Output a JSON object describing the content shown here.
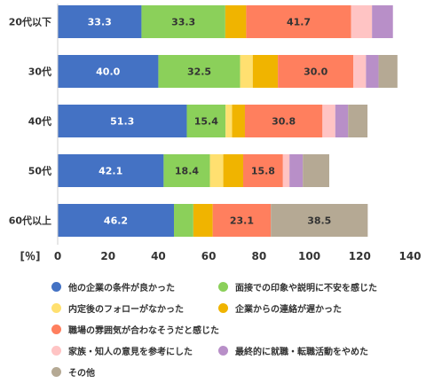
{
  "chart_data": {
    "type": "bar",
    "orientation": "horizontal",
    "stacked": true,
    "categories": [
      "20代以下",
      "30代",
      "40代",
      "50代",
      "60代以上"
    ],
    "series": [
      {
        "name": "他の企業の条件が良かった",
        "color": "#4472C4",
        "values": [
          33.3,
          40.0,
          51.3,
          42.1,
          46.2
        ],
        "labels": [
          "33.3",
          "40.0",
          "51.3",
          "42.1",
          "46.2"
        ]
      },
      {
        "name": "面接での印象や説明に不安を感じた",
        "color": "#8BD05A",
        "values": [
          33.3,
          32.5,
          15.4,
          18.4,
          7.7
        ],
        "labels": [
          "33.3",
          "32.5",
          "15.4",
          "18.4",
          ""
        ]
      },
      {
        "name": "内定後のフォローがなかった",
        "color": "#FFE070",
        "values": [
          0,
          5.0,
          2.6,
          5.3,
          0
        ],
        "labels": [
          "",
          "",
          "",
          "",
          ""
        ]
      },
      {
        "name": "企業からの連絡が遅かった",
        "color": "#F0B400",
        "values": [
          8.3,
          10.0,
          5.1,
          7.9,
          7.7
        ],
        "labels": [
          "",
          "",
          "",
          "",
          ""
        ]
      },
      {
        "name": "職場の雰囲気が合わなそうだと感じた",
        "color": "#FF7F5E",
        "values": [
          41.7,
          30.0,
          30.8,
          15.8,
          23.1
        ],
        "labels": [
          "41.7",
          "30.0",
          "30.8",
          "15.8",
          "23.1"
        ]
      },
      {
        "name": "家族・知人の意見を参考にした",
        "color": "#FFC4C4",
        "values": [
          8.3,
          5.0,
          5.1,
          2.6,
          0
        ],
        "labels": [
          "",
          "",
          "",
          "",
          ""
        ]
      },
      {
        "name": "最終的に就職・転職活動をやめた",
        "color": "#B88FC8",
        "values": [
          8.3,
          5.0,
          5.1,
          5.3,
          0
        ],
        "labels": [
          "",
          "",
          "",
          "",
          ""
        ]
      },
      {
        "name": "その他",
        "color": "#B5A994",
        "values": [
          0,
          7.5,
          7.7,
          10.5,
          38.5
        ],
        "labels": [
          "",
          "",
          "",
          "",
          "38.5"
        ]
      }
    ],
    "xlim": [
      0,
      140
    ],
    "xticks": [
      0,
      20,
      40,
      60,
      80,
      100,
      120,
      140
    ],
    "xlabel": "[％]",
    "grid": false,
    "legend": "bottom"
  }
}
